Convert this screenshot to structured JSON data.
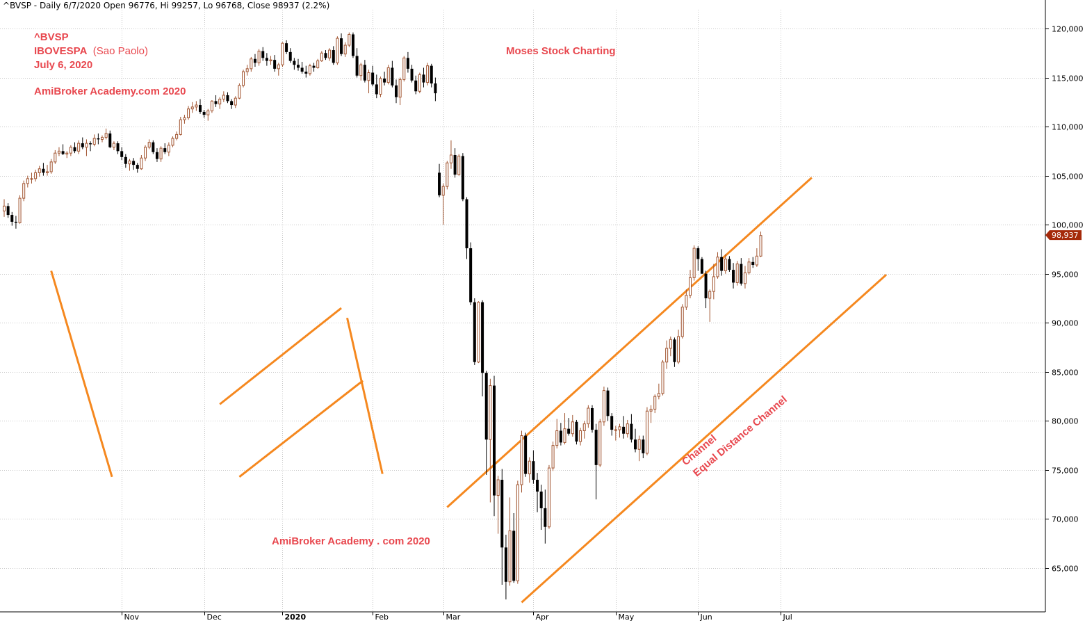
{
  "header": {
    "text": "^BVSP - Daily 6/7/2020 Open 96776, Hi 99257, Lo 96768, Close 98937 (2.2%)"
  },
  "annotations": {
    "symbol": "^BVSP",
    "index_name": "IBOVESPA",
    "index_city": "(Sao Paolo)",
    "date": "July 6, 2020",
    "watermark_top": "AmiBroker Academy.com  2020",
    "center_title": "Moses Stock Charting",
    "watermark_bottom": "AmiBroker Academy . com  2020",
    "channel_label_1": "Channel",
    "channel_label_2": "Equal Distance Channel"
  },
  "colors": {
    "up_candle": "#a0522d",
    "down_candle": "#000000",
    "trendline": "#f5881f",
    "annotation_text": "#e8484f",
    "last_price_tag": "#a52a0a",
    "grid": "#c8c8c8"
  },
  "chart_data": {
    "type": "candlestick",
    "symbol": "^BVSP",
    "ylim": [
      60000,
      123000
    ],
    "y_ticks": [
      65000,
      70000,
      75000,
      80000,
      85000,
      90000,
      95000,
      100000,
      105000,
      110000,
      115000,
      120000
    ],
    "y_tick_labels": [
      "65,000",
      "70,000",
      "75,000",
      "80,000",
      "85,000",
      "90,000",
      "95,000",
      "100,000",
      "105,000",
      "110,000",
      "115,000",
      "120,000"
    ],
    "x_ticks": [
      {
        "label": "Nov",
        "index": 30,
        "bold": false
      },
      {
        "label": "Dec",
        "index": 51,
        "bold": false
      },
      {
        "label": "2020",
        "index": 71,
        "bold": true
      },
      {
        "label": "Feb",
        "index": 94,
        "bold": false
      },
      {
        "label": "Mar",
        "index": 112,
        "bold": false
      },
      {
        "label": "Apr",
        "index": 135,
        "bold": false
      },
      {
        "label": "May",
        "index": 156,
        "bold": false
      },
      {
        "label": "Jun",
        "index": 177,
        "bold": false
      },
      {
        "label": "Jul",
        "index": 198,
        "bold": false
      }
    ],
    "last_price": 98937,
    "last_price_label": "98,937",
    "candles": [
      [
        101400,
        102600,
        100800,
        101900
      ],
      [
        101900,
        102200,
        100700,
        101000
      ],
      [
        101000,
        101300,
        99900,
        100300
      ],
      [
        100300,
        100900,
        99600,
        100200
      ],
      [
        100200,
        103000,
        100100,
        102700
      ],
      [
        102700,
        104500,
        102400,
        104200
      ],
      [
        104200,
        105000,
        103800,
        104700
      ],
      [
        104700,
        105300,
        104200,
        104700
      ],
      [
        104700,
        105600,
        104400,
        105300
      ],
      [
        105300,
        106000,
        104900,
        105700
      ],
      [
        105700,
        106300,
        105000,
        105300
      ],
      [
        105300,
        106100,
        105000,
        105400
      ],
      [
        105400,
        106700,
        105200,
        106400
      ],
      [
        106400,
        107600,
        106200,
        107300
      ],
      [
        107300,
        107900,
        107000,
        107500
      ],
      [
        107500,
        108200,
        107100,
        107200
      ],
      [
        107200,
        107500,
        106800,
        107300
      ],
      [
        107300,
        108100,
        107000,
        107900
      ],
      [
        107900,
        108400,
        107300,
        107500
      ],
      [
        107500,
        108600,
        107200,
        108300
      ],
      [
        108300,
        108900,
        107700,
        107900
      ],
      [
        107900,
        108700,
        107000,
        108300
      ],
      [
        108300,
        108500,
        107500,
        108200
      ],
      [
        108200,
        109200,
        108000,
        108800
      ],
      [
        108800,
        109300,
        108200,
        108700
      ],
      [
        108700,
        109100,
        108400,
        108900
      ],
      [
        108900,
        109800,
        108700,
        109300
      ],
      [
        109300,
        109600,
        107800,
        107900
      ],
      [
        107900,
        108500,
        107600,
        108300
      ],
      [
        108300,
        108500,
        107200,
        107500
      ],
      [
        107500,
        107900,
        106600,
        106900
      ],
      [
        106900,
        107200,
        105800,
        106200
      ],
      [
        106200,
        106700,
        105500,
        106500
      ],
      [
        106500,
        106800,
        105600,
        106100
      ],
      [
        106100,
        106300,
        105300,
        105700
      ],
      [
        105700,
        107100,
        105600,
        106800
      ],
      [
        106800,
        108100,
        106500,
        107900
      ],
      [
        107900,
        108700,
        107700,
        108400
      ],
      [
        108400,
        108600,
        107200,
        107400
      ],
      [
        107400,
        107800,
        106400,
        106700
      ],
      [
        106700,
        108000,
        106400,
        107800
      ],
      [
        107800,
        108300,
        107200,
        107400
      ],
      [
        107400,
        108400,
        107000,
        108100
      ],
      [
        108100,
        109000,
        107900,
        108800
      ],
      [
        108800,
        109500,
        108600,
        109200
      ],
      [
        109200,
        111000,
        109100,
        110700
      ],
      [
        110700,
        111200,
        110300,
        110900
      ],
      [
        110900,
        112100,
        110700,
        111800
      ],
      [
        111800,
        112500,
        111400,
        112000
      ],
      [
        112000,
        112600,
        111600,
        112200
      ],
      [
        112200,
        112800,
        111300,
        111500
      ],
      [
        111500,
        111700,
        110900,
        111200
      ],
      [
        111200,
        111800,
        110600,
        111600
      ],
      [
        111600,
        112700,
        111400,
        112600
      ],
      [
        112600,
        113200,
        112000,
        112300
      ],
      [
        112300,
        113000,
        111800,
        112800
      ],
      [
        112800,
        113600,
        112500,
        113200
      ],
      [
        113200,
        113500,
        112400,
        112600
      ],
      [
        112600,
        112800,
        111800,
        112200
      ],
      [
        112200,
        113100,
        111900,
        112900
      ],
      [
        112900,
        114400,
        112800,
        114200
      ],
      [
        114200,
        115800,
        114000,
        115600
      ],
      [
        115600,
        116300,
        115200,
        115900
      ],
      [
        115900,
        117100,
        115600,
        116900
      ],
      [
        116900,
        117400,
        116100,
        116500
      ],
      [
        116500,
        117900,
        116200,
        117700
      ],
      [
        117700,
        118100,
        116700,
        117000
      ],
      [
        117000,
        117500,
        116200,
        116700
      ],
      [
        116700,
        117200,
        116300,
        116800
      ],
      [
        116800,
        117300,
        115600,
        115900
      ],
      [
        115900,
        116500,
        115200,
        116300
      ],
      [
        116300,
        118600,
        116100,
        118500
      ],
      [
        118500,
        118800,
        117400,
        117600
      ],
      [
        117600,
        118000,
        116500,
        116700
      ],
      [
        116700,
        117000,
        115800,
        116300
      ],
      [
        116300,
        116900,
        115700,
        116000
      ],
      [
        116000,
        116600,
        115400,
        115600
      ],
      [
        115600,
        116200,
        115000,
        115400
      ],
      [
        115400,
        116400,
        115200,
        116200
      ],
      [
        116200,
        116500,
        115600,
        116000
      ],
      [
        116000,
        116900,
        115900,
        116700
      ],
      [
        116700,
        117700,
        116600,
        117500
      ],
      [
        117500,
        117800,
        116800,
        117000
      ],
      [
        117000,
        118000,
        116700,
        117800
      ],
      [
        117800,
        118200,
        116300,
        116500
      ],
      [
        116500,
        119200,
        116300,
        119000
      ],
      [
        119000,
        119500,
        117200,
        117400
      ],
      [
        117400,
        118600,
        117100,
        118300
      ],
      [
        118300,
        119600,
        118100,
        119400
      ],
      [
        119400,
        119600,
        117000,
        117200
      ],
      [
        117200,
        118000,
        115000,
        115200
      ],
      [
        115200,
        116500,
        114700,
        116300
      ],
      [
        116300,
        116800,
        114500,
        114700
      ],
      [
        114700,
        115800,
        113400,
        115500
      ],
      [
        115500,
        116200,
        114100,
        114300
      ],
      [
        114300,
        115300,
        112900,
        113300
      ],
      [
        113300,
        115100,
        113000,
        114900
      ],
      [
        114900,
        115600,
        114200,
        114500
      ],
      [
        114500,
        116300,
        114300,
        116000
      ],
      [
        116000,
        116700,
        114000,
        114200
      ],
      [
        114200,
        114800,
        112400,
        113000
      ],
      [
        113000,
        115000,
        112200,
        114800
      ],
      [
        114800,
        117200,
        114600,
        117000
      ],
      [
        117000,
        117600,
        115500,
        115900
      ],
      [
        115900,
        116300,
        114500,
        114700
      ],
      [
        114700,
        115200,
        113300,
        113600
      ],
      [
        113600,
        115500,
        113400,
        115300
      ],
      [
        115300,
        116000,
        114000,
        114500
      ],
      [
        114500,
        116500,
        114200,
        116200
      ],
      [
        116200,
        116400,
        114000,
        114400
      ],
      [
        114400,
        115000,
        112600,
        113400
      ],
      [
        105300,
        106200,
        102800,
        103000
      ],
      [
        103000,
        104200,
        100000,
        103900
      ],
      [
        103900,
        106500,
        103600,
        106300
      ],
      [
        106300,
        108600,
        105700,
        107100
      ],
      [
        107100,
        107800,
        104800,
        105100
      ],
      [
        105100,
        107200,
        105000,
        107000
      ],
      [
        107000,
        107300,
        102400,
        102600
      ],
      [
        102600,
        102800,
        96500,
        97600
      ],
      [
        97600,
        98200,
        91800,
        92100
      ],
      [
        92100,
        92500,
        85700,
        86000
      ],
      [
        86000,
        92200,
        85900,
        92100
      ],
      [
        92100,
        92300,
        82500,
        84900
      ],
      [
        84900,
        85100,
        74500,
        78100
      ],
      [
        78100,
        84300,
        71700,
        83600
      ],
      [
        83600,
        84600,
        70300,
        72400
      ],
      [
        72400,
        74400,
        68500,
        74000
      ],
      [
        74000,
        75100,
        63300,
        67100
      ],
      [
        67100,
        68400,
        61800,
        63600
      ],
      [
        63600,
        72200,
        63200,
        68800
      ],
      [
        68800,
        70600,
        63500,
        63700
      ],
      [
        63700,
        73900,
        63400,
        73500
      ],
      [
        73500,
        79000,
        72700,
        78500
      ],
      [
        78500,
        78800,
        74300,
        74600
      ],
      [
        74600,
        76300,
        73700,
        75900
      ],
      [
        75900,
        77000,
        73600,
        74000
      ],
      [
        74000,
        74700,
        70700,
        72800
      ],
      [
        72800,
        73500,
        68900,
        71100
      ],
      [
        71100,
        73000,
        67500,
        69200
      ],
      [
        69200,
        75500,
        69000,
        75200
      ],
      [
        75200,
        77900,
        74900,
        77500
      ],
      [
        77500,
        80200,
        77200,
        79000
      ],
      [
        79000,
        79800,
        77500,
        77800
      ],
      [
        77800,
        80800,
        77600,
        79200
      ],
      [
        79200,
        80300,
        78500,
        78700
      ],
      [
        78700,
        80600,
        78400,
        79900
      ],
      [
        79900,
        80100,
        77600,
        77900
      ],
      [
        77900,
        79300,
        77500,
        79000
      ],
      [
        79000,
        80000,
        78200,
        79700
      ],
      [
        79700,
        81600,
        79300,
        81300
      ],
      [
        81300,
        81600,
        78800,
        79100
      ],
      [
        79100,
        79700,
        72000,
        75500
      ],
      [
        75500,
        80200,
        75300,
        79900
      ],
      [
        79900,
        83500,
        79500,
        83100
      ],
      [
        83100,
        83400,
        80000,
        80500
      ],
      [
        80500,
        80800,
        78500,
        79100
      ],
      [
        79100,
        79500,
        78000,
        79100
      ],
      [
        79100,
        79700,
        78300,
        79400
      ],
      [
        79400,
        80500,
        78200,
        78700
      ],
      [
        78700,
        80100,
        78300,
        79700
      ],
      [
        79700,
        80700,
        77800,
        78100
      ],
      [
        78100,
        79200,
        76800,
        77100
      ],
      [
        77100,
        78500,
        75900,
        78100
      ],
      [
        78100,
        78500,
        76200,
        76700
      ],
      [
        76700,
        81400,
        76500,
        81000
      ],
      [
        81000,
        81600,
        79800,
        81200
      ],
      [
        81200,
        82700,
        80800,
        82500
      ],
      [
        82500,
        83800,
        82200,
        82800
      ],
      [
        82800,
        86200,
        82600,
        86000
      ],
      [
        86000,
        88200,
        85300,
        87400
      ],
      [
        87400,
        88600,
        86600,
        88300
      ],
      [
        88300,
        88500,
        85500,
        86000
      ],
      [
        86000,
        89300,
        85800,
        88600
      ],
      [
        88600,
        91900,
        88400,
        91600
      ],
      [
        91600,
        93400,
        91300,
        92800
      ],
      [
        92800,
        95400,
        92500,
        94600
      ],
      [
        94600,
        97900,
        94300,
        97600
      ],
      [
        97600,
        97800,
        95300,
        96500
      ],
      [
        96500,
        96700,
        95300,
        95000
      ],
      [
        95000,
        95300,
        91500,
        92500
      ],
      [
        92500,
        93400,
        90100,
        93200
      ],
      [
        93200,
        96000,
        92400,
        94700
      ],
      [
        94700,
        97200,
        94500,
        96700
      ],
      [
        96700,
        97500,
        94800,
        95300
      ],
      [
        95300,
        97000,
        95000,
        96500
      ],
      [
        96500,
        96800,
        95200,
        95400
      ],
      [
        95400,
        96100,
        93500,
        94100
      ],
      [
        94100,
        96300,
        93800,
        96000
      ],
      [
        96000,
        96600,
        93800,
        94000
      ],
      [
        94000,
        95800,
        93500,
        95100
      ],
      [
        95100,
        96600,
        94900,
        96200
      ],
      [
        96200,
        96700,
        95600,
        95900
      ],
      [
        95900,
        97600,
        95700,
        96800
      ],
      [
        96800,
        99300,
        96700,
        98900
      ]
    ],
    "trendlines": [
      {
        "p1": [
          12,
          95300
        ],
        "p2": [
          27.5,
          74300
        ]
      },
      {
        "p1": [
          55,
          81700
        ],
        "p2": [
          86,
          91500
        ]
      },
      {
        "p1": [
          60,
          74300
        ],
        "p2": [
          91.5,
          84100
        ]
      },
      {
        "p1": [
          87.5,
          90500
        ],
        "p2": [
          96.5,
          74600
        ]
      },
      {
        "p1": [
          113,
          71200
        ],
        "p2": [
          206,
          104800
        ]
      },
      {
        "p1": [
          132,
          61500
        ],
        "p2": [
          225,
          94900
        ]
      }
    ]
  }
}
